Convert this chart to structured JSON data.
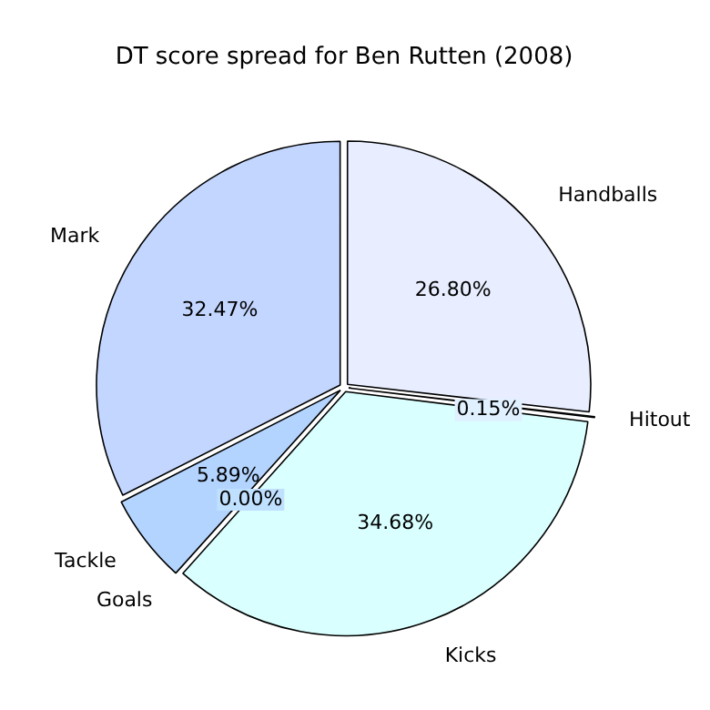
{
  "chart_data": {
    "type": "pie",
    "title": "DT score spread for Ben Rutten (2008)",
    "categories": [
      "Handballs",
      "Hitout",
      "Kicks",
      "Goals",
      "Tackle",
      "Mark"
    ],
    "values": [
      26.8,
      0.15,
      34.68,
      0.0,
      5.89,
      32.47
    ],
    "value_labels": [
      "26.80%",
      "0.15%",
      "34.68%",
      "0.00%",
      "5.89%",
      "32.47%"
    ],
    "colors": [
      "#e8eeff",
      "#e0f0ff",
      "#d9ffff",
      "#c0e0ff",
      "#b3d4ff",
      "#c3d6ff"
    ],
    "legend": false
  }
}
